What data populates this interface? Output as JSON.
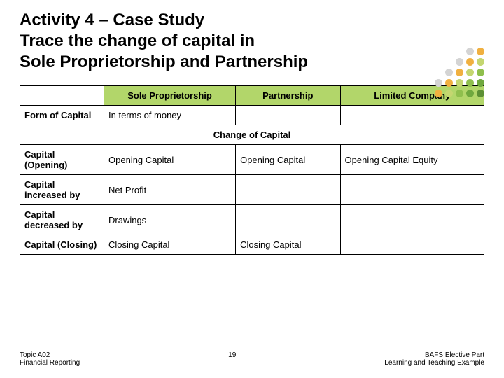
{
  "title_line1": "Activity 4 – Case Study",
  "title_line2": "Trace the change of capital in",
  "title_line3": "Sole Proprietorship and Partnership",
  "dots": {
    "colors": [
      [
        "#ffffff",
        "#ffffff",
        "#ffffff",
        "#d4d4d4",
        "#f0b040"
      ],
      [
        "#ffffff",
        "#ffffff",
        "#d4d4d4",
        "#f0b040",
        "#c4d670"
      ],
      [
        "#ffffff",
        "#d4d4d4",
        "#f0b040",
        "#c4d670",
        "#8fbf4d"
      ],
      [
        "#d4d4d4",
        "#f0b040",
        "#c4d670",
        "#8fbf4d",
        "#6fa83e"
      ],
      [
        "#f0b040",
        "#c4d670",
        "#8fbf4d",
        "#6fa83e",
        "#5c8f34"
      ]
    ]
  },
  "table": {
    "header_bg": "#b2d66a",
    "headers": [
      "",
      "Sole Proprietorship",
      "Partnership",
      "Limited Company"
    ],
    "rows": [
      {
        "label": "Form of Capital",
        "cells": [
          "In terms of money",
          "",
          ""
        ]
      }
    ],
    "span_label": "Change of Capital",
    "rows2": [
      {
        "label": "Capital (Opening)",
        "cells": [
          "Opening Capital",
          "Opening Capital",
          "Opening Capital Equity"
        ]
      },
      {
        "label": "Capital increased by",
        "cells": [
          "Net Profit",
          "",
          ""
        ]
      },
      {
        "label": "Capital decreased by",
        "cells": [
          "Drawings",
          "",
          ""
        ]
      },
      {
        "label": "Capital (Closing)",
        "cells": [
          "Closing Capital",
          "Closing Capital",
          ""
        ]
      }
    ]
  },
  "footer": {
    "left_line1": "Topic A02",
    "left_line2": "Financial Reporting",
    "page": "19",
    "right_line1": "BAFS Elective Part",
    "right_line2": "Learning and Teaching Example"
  }
}
